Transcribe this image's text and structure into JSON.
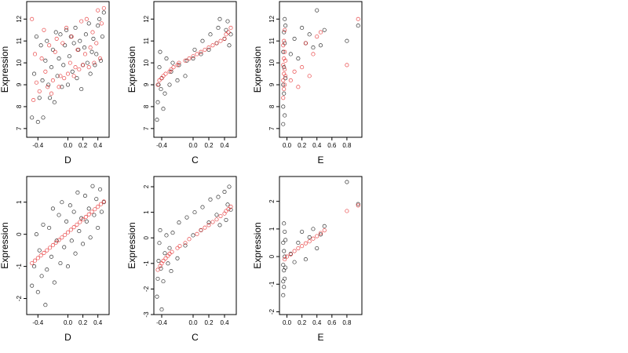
{
  "colors": {
    "black_points": "#000000",
    "red_points": "#e41a1c",
    "frame": "#000000"
  },
  "chart_data": [
    {
      "type": "scatter",
      "panel": "top-left",
      "xlabel": "D",
      "ylabel": "Expression",
      "xlim": [
        -0.55,
        0.55
      ],
      "ylim": [
        6.6,
        12.8
      ],
      "xticks": [
        -0.4,
        0.0,
        0.2,
        0.4
      ],
      "xtick_labels": [
        "-0.4",
        "0.0",
        "0.2",
        "0.4"
      ],
      "yticks": [
        7,
        8,
        9,
        10,
        11,
        12
      ],
      "ytick_labels": [
        "7",
        "8",
        "9",
        "10",
        "11",
        "12"
      ],
      "series": [
        {
          "color": "#000000",
          "x": [
            -0.48,
            -0.45,
            -0.42,
            -0.4,
            -0.38,
            -0.36,
            -0.34,
            -0.33,
            -0.3,
            -0.28,
            -0.26,
            -0.24,
            -0.22,
            -0.2,
            -0.18,
            -0.16,
            -0.14,
            -0.12,
            -0.1,
            -0.08,
            -0.06,
            -0.04,
            -0.02,
            0.0,
            0.02,
            0.04,
            0.06,
            0.08,
            0.1,
            0.12,
            0.14,
            0.16,
            0.18,
            0.2,
            0.22,
            0.24,
            0.26,
            0.28,
            0.3,
            0.32,
            0.34,
            0.36,
            0.38,
            0.4,
            0.42,
            0.44,
            0.46,
            0.48
          ],
          "y": [
            7.5,
            9.5,
            11.2,
            7.3,
            8.4,
            10.8,
            9.2,
            7.5,
            10.1,
            11.0,
            9.0,
            8.4,
            9.8,
            10.6,
            8.2,
            11.4,
            9.4,
            10.2,
            11.3,
            8.9,
            9.9,
            10.8,
            11.5,
            9.0,
            10.3,
            11.2,
            9.6,
            10.9,
            11.6,
            9.3,
            10.6,
            11.0,
            8.8,
            9.9,
            10.7,
            11.3,
            10.0,
            11.8,
            9.5,
            10.5,
            11.1,
            9.9,
            10.4,
            11.7,
            12.0,
            10.1,
            11.2,
            12.3
          ]
        },
        {
          "color": "#e41a1c",
          "x": [
            -0.48,
            -0.46,
            -0.44,
            -0.42,
            -0.38,
            -0.35,
            -0.32,
            -0.3,
            -0.27,
            -0.25,
            -0.22,
            -0.2,
            -0.17,
            -0.15,
            -0.12,
            -0.1,
            -0.07,
            -0.05,
            -0.02,
            0.0,
            0.03,
            0.05,
            0.08,
            0.1,
            0.13,
            0.15,
            0.18,
            0.2,
            0.23,
            0.25,
            0.28,
            0.3,
            0.33,
            0.35,
            0.38,
            0.4,
            0.43,
            0.45,
            0.48
          ],
          "y": [
            12.0,
            8.3,
            10.4,
            9.1,
            8.7,
            10.2,
            11.5,
            9.6,
            8.9,
            10.8,
            8.6,
            9.2,
            10.5,
            11.1,
            8.9,
            9.4,
            10.9,
            9.3,
            11.6,
            9.5,
            10.0,
            11.2,
            9.4,
            9.8,
            10.6,
            9.7,
            11.9,
            9.9,
            10.4,
            12.0,
            9.8,
            10.7,
            11.4,
            10.0,
            10.9,
            12.4,
            10.2,
            11.8,
            12.5
          ]
        }
      ]
    },
    {
      "type": "scatter",
      "panel": "top-middle",
      "xlabel": "C",
      "ylabel": "Expression",
      "xlim": [
        -0.5,
        0.55
      ],
      "ylim": [
        6.6,
        12.8
      ],
      "xticks": [
        -0.4,
        0.0,
        0.2,
        0.4
      ],
      "xtick_labels": [
        "-0.4",
        "0.0",
        "0.2",
        "0.4"
      ],
      "yticks": [
        7,
        8,
        9,
        10,
        11,
        12
      ],
      "ytick_labels": [
        "7",
        "8",
        "9",
        "10",
        "11",
        "12"
      ],
      "series": [
        {
          "color": "#000000",
          "x": [
            -0.46,
            -0.45,
            -0.44,
            -0.43,
            -0.42,
            -0.41,
            -0.4,
            -0.38,
            -0.36,
            -0.34,
            -0.3,
            -0.28,
            -0.26,
            -0.2,
            -0.18,
            -0.1,
            -0.08,
            0.0,
            0.02,
            0.1,
            0.12,
            0.2,
            0.22,
            0.3,
            0.32,
            0.34,
            0.4,
            0.42,
            0.44,
            0.46,
            0.48
          ],
          "y": [
            7.4,
            8.2,
            9.0,
            9.8,
            10.5,
            8.8,
            9.3,
            7.9,
            8.6,
            10.2,
            9.0,
            9.6,
            10.0,
            9.2,
            9.9,
            9.4,
            10.1,
            10.2,
            10.6,
            10.4,
            11.0,
            10.6,
            11.3,
            10.9,
            11.6,
            12.0,
            11.1,
            11.5,
            11.9,
            10.8,
            11.3
          ]
        },
        {
          "color": "#e41a1c",
          "x": [
            -0.45,
            -0.43,
            -0.4,
            -0.38,
            -0.35,
            -0.3,
            -0.28,
            -0.25,
            -0.2,
            -0.18,
            -0.1,
            -0.05,
            0.0,
            0.05,
            0.1,
            0.15,
            0.2,
            0.25,
            0.3,
            0.35,
            0.4,
            0.42,
            0.45,
            0.48
          ],
          "y": [
            9.0,
            9.2,
            9.3,
            9.4,
            9.5,
            9.6,
            9.7,
            9.8,
            9.9,
            10.0,
            10.1,
            10.2,
            10.3,
            10.4,
            10.5,
            10.6,
            10.7,
            10.8,
            10.9,
            11.0,
            11.1,
            11.3,
            11.4,
            11.6
          ]
        }
      ]
    },
    {
      "type": "scatter",
      "panel": "top-right",
      "xlabel": "E",
      "ylabel": "Expression",
      "xlim": [
        -0.1,
        1.0
      ],
      "ylim": [
        6.6,
        12.8
      ],
      "xticks": [
        0.0,
        0.2,
        0.4,
        0.6,
        0.8
      ],
      "xtick_labels": [
        "0.0",
        "0.2",
        "0.4",
        "0.6",
        "0.8"
      ],
      "yticks": [
        7,
        8,
        9,
        10,
        11,
        12
      ],
      "ytick_labels": [
        "7",
        "8",
        "9",
        "10",
        "11",
        "12"
      ],
      "series": [
        {
          "color": "#000000",
          "x": [
            -0.05,
            -0.05,
            -0.05,
            -0.05,
            -0.04,
            -0.04,
            -0.04,
            -0.03,
            -0.03,
            -0.03,
            -0.02,
            -0.02,
            0.05,
            0.1,
            0.15,
            0.2,
            0.25,
            0.3,
            0.35,
            0.4,
            0.45,
            0.5,
            0.8,
            0.95
          ],
          "y": [
            7.2,
            8.0,
            9.0,
            10.5,
            11.4,
            8.6,
            9.8,
            7.6,
            10.9,
            12.0,
            9.3,
            11.7,
            10.4,
            11.1,
            10.2,
            11.6,
            10.9,
            11.3,
            10.7,
            12.4,
            10.8,
            11.5,
            11.0,
            11.7
          ]
        },
        {
          "color": "#e41a1c",
          "x": [
            -0.05,
            -0.05,
            -0.05,
            -0.05,
            -0.04,
            -0.04,
            -0.04,
            -0.04,
            -0.03,
            -0.03,
            -0.03,
            -0.03,
            -0.02,
            -0.02,
            0.05,
            0.1,
            0.15,
            0.2,
            0.25,
            0.3,
            0.35,
            0.4,
            0.45,
            0.8,
            0.95
          ],
          "y": [
            8.4,
            9.2,
            9.9,
            10.8,
            8.8,
            9.5,
            10.2,
            11.0,
            9.0,
            9.7,
            10.5,
            11.5,
            9.4,
            10.1,
            9.2,
            9.6,
            8.9,
            9.8,
            10.9,
            9.4,
            10.4,
            11.2,
            11.4,
            9.9,
            12.0
          ]
        }
      ]
    },
    {
      "type": "scatter",
      "panel": "bottom-left",
      "xlabel": "D",
      "ylabel": "Expression",
      "xlim": [
        -0.55,
        0.55
      ],
      "ylim": [
        -2.5,
        1.8
      ],
      "xticks": [
        -0.4,
        0.0,
        0.2,
        0.4
      ],
      "xtick_labels": [
        "-0.4",
        "0.0",
        "0.2",
        "0.4"
      ],
      "yticks": [
        -2,
        -1,
        0,
        1
      ],
      "ytick_labels": [
        "-2",
        "-1",
        "0",
        "1"
      ],
      "series": [
        {
          "color": "#000000",
          "x": [
            -0.48,
            -0.45,
            -0.42,
            -0.4,
            -0.38,
            -0.35,
            -0.33,
            -0.3,
            -0.28,
            -0.25,
            -0.22,
            -0.2,
            -0.18,
            -0.15,
            -0.12,
            -0.1,
            -0.08,
            -0.05,
            -0.02,
            0.0,
            0.03,
            0.05,
            0.08,
            0.1,
            0.13,
            0.15,
            0.18,
            0.2,
            0.23,
            0.25,
            0.28,
            0.3,
            0.33,
            0.35,
            0.38,
            0.4,
            0.43,
            0.45,
            0.48
          ],
          "y": [
            -1.6,
            -1.0,
            0.0,
            -1.8,
            -0.5,
            -1.3,
            0.3,
            -2.2,
            -1.1,
            0.2,
            -0.7,
            0.8,
            -1.5,
            -0.2,
            0.6,
            -0.9,
            1.0,
            -0.4,
            0.4,
            -1.0,
            0.9,
            -0.2,
            0.7,
            -0.6,
            1.3,
            0.1,
            0.5,
            -0.3,
            1.2,
            0.4,
            0.8,
            -0.1,
            1.5,
            0.6,
            1.1,
            0.2,
            1.4,
            0.7,
            1.0
          ]
        },
        {
          "color": "#e41a1c",
          "x": [
            -0.48,
            -0.44,
            -0.4,
            -0.36,
            -0.32,
            -0.28,
            -0.24,
            -0.2,
            -0.16,
            -0.12,
            -0.08,
            -0.04,
            0.0,
            0.04,
            0.08,
            0.12,
            0.16,
            0.2,
            0.24,
            0.28,
            0.32,
            0.36,
            0.4,
            0.44,
            0.48
          ],
          "y": [
            -0.9,
            -0.82,
            -0.74,
            -0.66,
            -0.58,
            -0.5,
            -0.42,
            -0.34,
            -0.26,
            -0.18,
            -0.1,
            -0.02,
            0.06,
            0.14,
            0.22,
            0.3,
            0.38,
            0.46,
            0.54,
            0.62,
            0.7,
            0.78,
            0.86,
            0.94,
            1.02
          ]
        }
      ]
    },
    {
      "type": "scatter",
      "panel": "bottom-middle",
      "xlabel": "C",
      "ylabel": "Expression",
      "xlim": [
        -0.5,
        0.55
      ],
      "ylim": [
        -3.0,
        2.4
      ],
      "xticks": [
        -0.4,
        0.0,
        0.2,
        0.4
      ],
      "xtick_labels": [
        "-0.4",
        "0.0",
        "0.2",
        "0.4"
      ],
      "yticks": [
        -3,
        -2,
        -1,
        0,
        1,
        2
      ],
      "ytick_labels": [
        "-3",
        "-2",
        "-1",
        "0",
        "1",
        "2"
      ],
      "series": [
        {
          "color": "#000000",
          "x": [
            -0.46,
            -0.45,
            -0.44,
            -0.43,
            -0.42,
            -0.41,
            -0.4,
            -0.38,
            -0.36,
            -0.34,
            -0.32,
            -0.3,
            -0.28,
            -0.26,
            -0.2,
            -0.18,
            -0.1,
            -0.08,
            0.0,
            0.02,
            0.1,
            0.12,
            0.2,
            0.22,
            0.3,
            0.32,
            0.34,
            0.4,
            0.42,
            0.44,
            0.46,
            0.48
          ],
          "y": [
            -2.3,
            -1.6,
            -0.9,
            -0.2,
            0.3,
            -1.2,
            -2.8,
            -1.7,
            -0.6,
            0.1,
            -1.0,
            -0.4,
            -1.3,
            0.2,
            -0.8,
            0.6,
            -0.3,
            0.8,
            0.1,
            1.0,
            0.3,
            1.2,
            0.6,
            1.5,
            0.9,
            1.6,
            0.5,
            1.8,
            0.7,
            1.3,
            2.0,
            1.1
          ]
        },
        {
          "color": "#e41a1c",
          "x": [
            -0.45,
            -0.42,
            -0.4,
            -0.38,
            -0.35,
            -0.32,
            -0.3,
            -0.27,
            -0.2,
            -0.17,
            -0.1,
            -0.05,
            0.05,
            0.1,
            0.15,
            0.2,
            0.25,
            0.3,
            0.35,
            0.4,
            0.42,
            0.45,
            0.48
          ],
          "y": [
            -1.25,
            -1.1,
            -1.0,
            -0.9,
            -0.8,
            -0.7,
            -0.62,
            -0.55,
            -0.4,
            -0.32,
            -0.2,
            -0.05,
            0.15,
            0.3,
            0.4,
            0.5,
            0.62,
            0.72,
            0.85,
            0.95,
            1.05,
            1.12,
            1.22
          ]
        }
      ]
    },
    {
      "type": "scatter",
      "panel": "bottom-right",
      "xlabel": "E",
      "ylabel": "Expression",
      "xlim": [
        -0.1,
        1.0
      ],
      "ylim": [
        -2.1,
        2.9
      ],
      "xticks": [
        0.0,
        0.2,
        0.4,
        0.6,
        0.8
      ],
      "xtick_labels": [
        "0.0",
        "0.2",
        "0.4",
        "0.6",
        "0.8"
      ],
      "yticks": [
        -2,
        -1,
        0,
        1,
        2
      ],
      "ytick_labels": [
        "-2",
        "-1",
        "0",
        "1",
        "2"
      ],
      "series": [
        {
          "color": "#000000",
          "x": [
            -0.05,
            -0.05,
            -0.05,
            -0.05,
            -0.04,
            -0.04,
            -0.04,
            -0.04,
            -0.03,
            -0.03,
            -0.03,
            -0.02,
            -0.02,
            0.05,
            0.1,
            0.15,
            0.2,
            0.25,
            0.3,
            0.35,
            0.4,
            0.45,
            0.5,
            0.8,
            0.95
          ],
          "y": [
            -1.4,
            -0.9,
            -0.3,
            0.5,
            -1.1,
            -0.5,
            0.2,
            1.2,
            -0.8,
            0.0,
            0.9,
            -0.4,
            0.6,
            0.1,
            -0.2,
            0.5,
            0.9,
            -0.1,
            0.7,
            1.0,
            0.3,
            0.8,
            1.1,
            2.7,
            1.9
          ]
        },
        {
          "color": "#e41a1c",
          "x": [
            -0.03,
            0.0,
            0.05,
            0.1,
            0.15,
            0.2,
            0.25,
            0.3,
            0.35,
            0.4,
            0.45,
            0.5,
            0.8,
            0.95
          ],
          "y": [
            -0.1,
            0.0,
            0.08,
            0.2,
            0.3,
            0.38,
            0.48,
            0.55,
            0.65,
            0.74,
            0.85,
            0.95,
            1.65,
            1.85
          ]
        }
      ]
    }
  ]
}
